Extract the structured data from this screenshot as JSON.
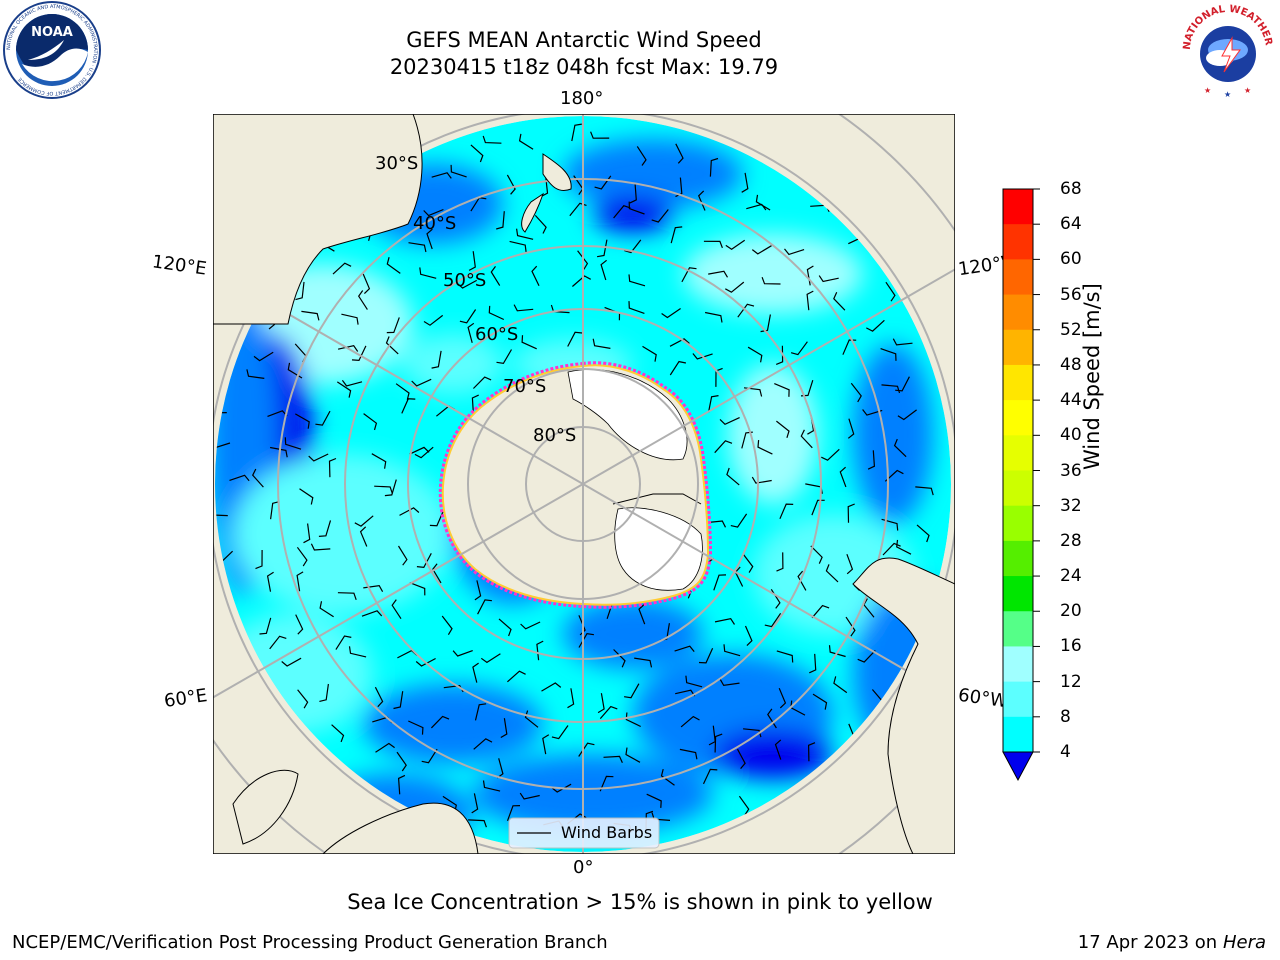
{
  "header": {
    "title_line1": "GEFS MEAN Antarctic Wind Speed",
    "title_line2": "20230415 t18z 048h fcst   Max: 19.79"
  },
  "logos": {
    "left": {
      "name": "NOAA",
      "ring_text": "NATIONAL OCEANIC AND ATMOSPHERIC ADMINISTRATION · U.S. DEPARTMENT OF COMMERCE"
    },
    "right": {
      "name": "NATIONAL WEATHER SERVICE"
    }
  },
  "map": {
    "projection": "south-polar-stereographic",
    "longitude_labels": {
      "top": "180°",
      "bottom": "0°",
      "upper_left": "120°E",
      "upper_right": "120°W",
      "lower_left": "60°E",
      "lower_right": "60°W"
    },
    "latitude_labels": [
      "30°S",
      "40°S",
      "50°S",
      "60°S",
      "70°S",
      "80°S"
    ],
    "legend_label": "Wind Barbs",
    "colors": {
      "land": "#efecdc",
      "ocean_low": "#0000ee",
      "ocean_4_8": "#0080ff",
      "ocean_8_12": "#00ffff",
      "ocean_12_16": "#5cffff",
      "ocean_16_20": "#a0ffff",
      "ice_edge": "#ff33cc",
      "ice_edge_inner": "#ffcc33"
    }
  },
  "colorbar": {
    "label": "Wind Speed [m/s]",
    "ticks": [
      "68",
      "64",
      "60",
      "56",
      "52",
      "48",
      "44",
      "40",
      "36",
      "32",
      "28",
      "24",
      "20",
      "16",
      "12",
      "8",
      "4"
    ],
    "colors": [
      "#ff0000",
      "#ff3300",
      "#ff6600",
      "#ff8c00",
      "#ffb400",
      "#ffe600",
      "#ffff00",
      "#e6ff00",
      "#ccff00",
      "#99ff00",
      "#55ee00",
      "#00e600",
      "#55ff88",
      "#a0ffff",
      "#5cffff",
      "#00ffff",
      "#0080ff"
    ],
    "under_color": "#0000ee"
  },
  "notes": {
    "sea_ice": "Sea Ice Concentration > 15% is shown in pink to yellow"
  },
  "footer": {
    "left": "NCEP/EMC/Verification Post Processing Product Generation Branch",
    "date": "17 Apr 2023 on ",
    "machine": "Hera"
  }
}
